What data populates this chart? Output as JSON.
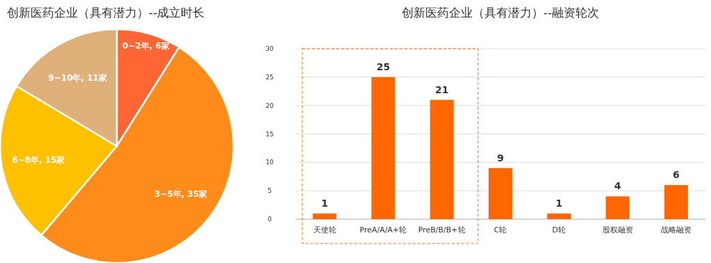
{
  "chart_data": [
    {
      "type": "pie",
      "title": "创新医药企业（具有潜力）--成立时长",
      "categories": [
        "0~2年",
        "3~5年",
        "6~8年",
        "9~10年"
      ],
      "values": [
        6,
        35,
        15,
        11
      ],
      "value_labels": [
        "6家",
        "35家",
        "15家",
        "11家"
      ],
      "colors": [
        "#ff6633",
        "#ff8c1a",
        "#ffc000",
        "#e0b07a"
      ]
    },
    {
      "type": "bar",
      "title": "创新医药企业（具有潜力）--融资轮次",
      "categories": [
        "天使轮",
        "PreA/A/A+轮",
        "PreB/B/B+轮",
        "C轮",
        "D轮",
        "股权融资",
        "战略融资"
      ],
      "values": [
        1,
        25,
        21,
        9,
        1,
        4,
        6
      ],
      "color": "#ff6600",
      "ylim": [
        0,
        30
      ],
      "yticks": [
        0,
        5,
        10,
        15,
        20,
        25,
        30
      ],
      "grid": "y",
      "data_labels": true
    }
  ]
}
